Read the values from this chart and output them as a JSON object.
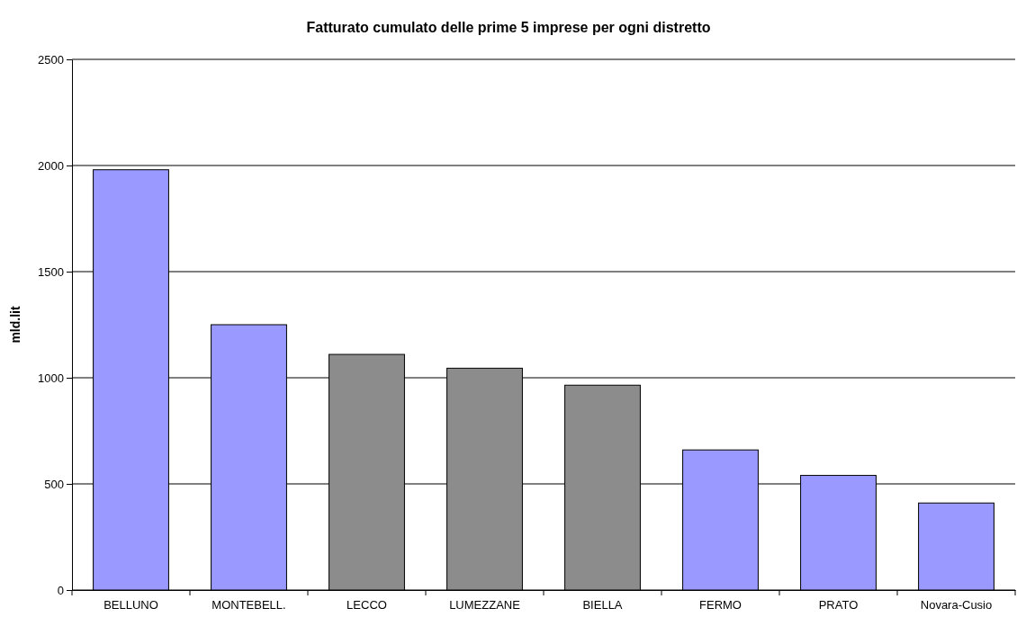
{
  "chart_data": {
    "type": "bar",
    "title": "Fatturato cumulato delle prime 5 imprese per ogni distretto",
    "ylabel": "mld.lit",
    "categories": [
      "BELLUNO",
      "MONTEBELL.",
      "LECCO",
      "LUMEZZANE",
      "BIELLA",
      "FERMO",
      "PRATO",
      "Novara-Cusio"
    ],
    "values": [
      1980,
      1250,
      1110,
      1045,
      965,
      660,
      540,
      410
    ],
    "colors": [
      "#9999ff",
      "#9999ff",
      "#8c8c8c",
      "#8c8c8c",
      "#8c8c8c",
      "#9999ff",
      "#9999ff",
      "#9999ff"
    ],
    "ylim": [
      0,
      2500
    ],
    "yticks": [
      0,
      500,
      1000,
      1500,
      2000,
      2500
    ],
    "grid": "y"
  }
}
